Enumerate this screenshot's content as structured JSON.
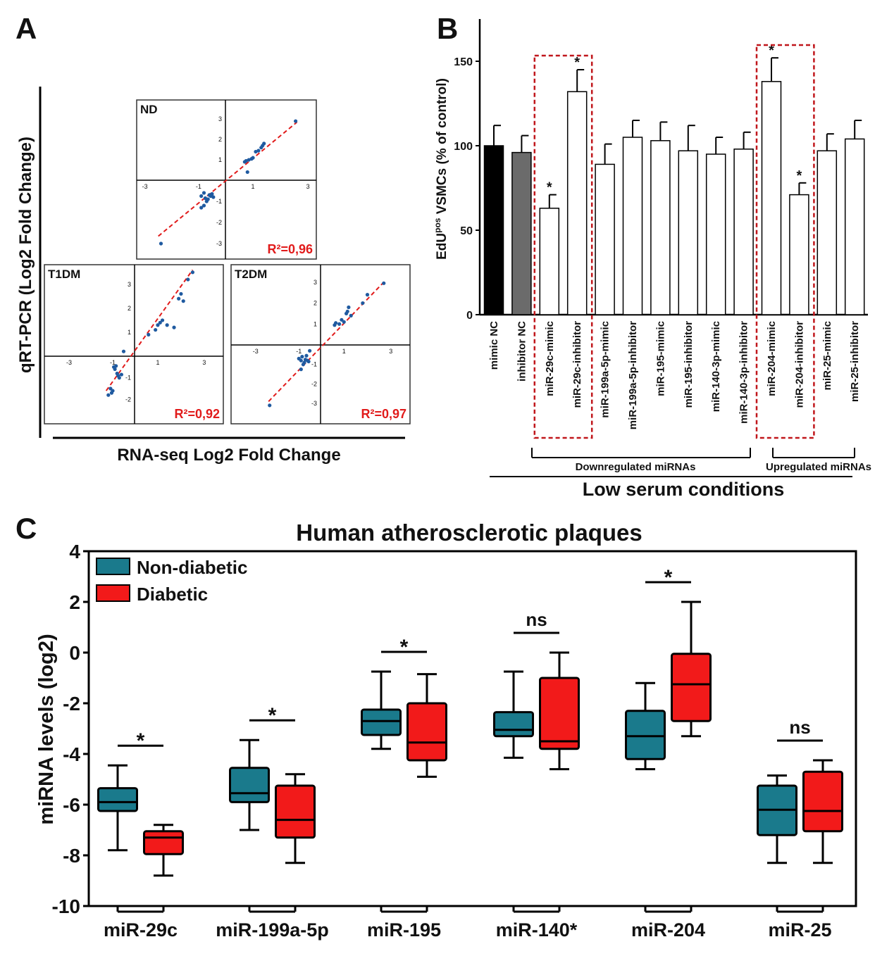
{
  "panel_labels": {
    "a": "A",
    "b": "B",
    "c": "C"
  },
  "colors": {
    "fit_line": "#e11b1b",
    "r2_text": "#e11b1b",
    "point": "#1f5aa0",
    "mimic_nc": "#000000",
    "inhibitor_nc": "#6b6b6b",
    "bar_default": "#ffffff",
    "highlight_box": "#c0161b",
    "non_diabetic": "#1a7a8c",
    "diabetic": "#f21a1a"
  },
  "panelA": {
    "ylabel": "qRT-PCR (Log2 Fold Change)",
    "xlabel": "RNA-seq Log2 Fold Change"
  },
  "panelB": {
    "ylabel_prefix": "EdU",
    "ylabel_sup": "pos",
    "ylabel_suffix": " VSMCs (% of control)",
    "group_labels": {
      "down": "Downregulated miRNAs",
      "up": "Upregulated miRNAs"
    },
    "condition_label": "Low serum conditions"
  },
  "panelC": {
    "title": "Human atherosclerotic plaques",
    "ylabel": "miRNA levels (log2)"
  },
  "chart_data": [
    {
      "type": "scatter",
      "panel": "A",
      "title": "ND",
      "annotation": "R²=0,96",
      "xticks": [
        "-3",
        "-1",
        "1",
        "3"
      ],
      "yticks": [
        "3",
        "2",
        "1",
        "-1",
        "-2",
        "-3"
      ],
      "xlim": [
        -3.2,
        3.2
      ],
      "ylim": [
        -3.6,
        3.8
      ],
      "fit_line": [
        [
          -2.5,
          -2.65
        ],
        [
          2.6,
          2.85
        ]
      ],
      "x": [
        -2.4,
        -0.9,
        -0.8,
        -0.75,
        -0.7,
        -0.65,
        -0.6,
        -0.55,
        -0.5,
        -0.45,
        -0.8,
        -0.9,
        0.7,
        0.75,
        0.85,
        0.95,
        1.0,
        1.1,
        1.2,
        1.3,
        1.35,
        1.4,
        0.8,
        2.55
      ],
      "y": [
        -3.0,
        -0.75,
        -0.6,
        -0.85,
        -1.0,
        -0.9,
        -0.7,
        -0.75,
        -0.65,
        -0.8,
        -1.2,
        -1.3,
        0.9,
        0.95,
        1.0,
        1.05,
        1.1,
        1.4,
        1.45,
        1.6,
        1.7,
        1.8,
        0.4,
        2.9
      ]
    },
    {
      "type": "scatter",
      "panel": "A",
      "title": "T1DM",
      "annotation": "R²=0,92",
      "xticks": [
        "-3",
        "-1",
        "1",
        "3"
      ],
      "yticks": [
        "3",
        "2",
        "1",
        "-1",
        "-2"
      ],
      "xlim": [
        -4.0,
        3.7
      ],
      "ylim": [
        -3.0,
        3.7
      ],
      "fit_line": [
        [
          -1.3,
          -1.6
        ],
        [
          2.5,
          3.6
        ]
      ],
      "x": [
        -1.2,
        -1.1,
        -1.0,
        -1.05,
        -0.95,
        -0.9,
        -0.85,
        -0.8,
        -0.75,
        -0.7,
        -0.6,
        -0.5,
        0.6,
        0.9,
        1.0,
        1.1,
        1.2,
        1.4,
        1.7,
        1.9,
        2.0,
        2.1,
        2.3,
        2.5
      ],
      "y": [
        -1.8,
        -1.5,
        -1.6,
        -1.7,
        -0.5,
        -0.6,
        -0.45,
        -0.8,
        -0.9,
        -1.0,
        -0.85,
        0.2,
        0.9,
        1.1,
        1.3,
        1.4,
        1.5,
        1.3,
        1.2,
        2.4,
        2.6,
        2.3,
        3.2,
        3.5
      ]
    },
    {
      "type": "scatter",
      "panel": "A",
      "title": "T2DM",
      "annotation": "R²=0,97",
      "xticks": [
        "-3",
        "-1",
        "1",
        "3"
      ],
      "yticks": [
        "3",
        "2",
        "1",
        "-1",
        "-2",
        "-3"
      ],
      "xlim": [
        -4.0,
        3.7
      ],
      "ylim": [
        -3.9,
        3.7
      ],
      "fit_line": [
        [
          -2.4,
          -2.9
        ],
        [
          2.7,
          3.0
        ]
      ],
      "x": [
        -2.35,
        -1.0,
        -0.9,
        -0.85,
        -0.8,
        -0.75,
        -0.7,
        -0.65,
        -0.6,
        -0.55,
        -0.5,
        -0.9,
        0.6,
        0.65,
        0.8,
        0.9,
        1.0,
        1.1,
        1.15,
        1.2,
        1.3,
        1.8,
        2.0,
        2.7
      ],
      "y": [
        -3.1,
        -0.7,
        -0.8,
        -0.6,
        -1.0,
        -0.9,
        -0.75,
        -0.55,
        -0.8,
        -0.85,
        -0.3,
        -1.25,
        0.95,
        1.05,
        1.0,
        1.2,
        1.1,
        1.5,
        1.6,
        1.8,
        1.4,
        2.0,
        2.4,
        2.95
      ]
    },
    {
      "type": "bar",
      "panel": "B",
      "categories": [
        "mimic NC",
        "inhibitor NC",
        "miR-29c-mimic",
        "miR-29c-inhibitor",
        "miR-199a-5p-mimic",
        "miR-199a-5p-inhibitor",
        "miR-195-mimic",
        "miR-195-inhibitor",
        "miR-140-3p-mimic",
        "miR-140-3p-inhibitor",
        "miR-204-mimic",
        "miR-204-inhibitor",
        "miR-25-mimic",
        "miR-25-inhibitor"
      ],
      "values": [
        100,
        96,
        63,
        132,
        89,
        105,
        103,
        97,
        95,
        98,
        138,
        71,
        97,
        104
      ],
      "error": [
        12,
        10,
        8,
        13,
        12,
        10,
        11,
        15,
        10,
        10,
        14,
        7,
        10,
        11
      ],
      "significance": [
        "",
        "",
        "*",
        "*",
        "",
        "",
        "",
        "",
        "",
        "",
        "*",
        "*",
        "",
        ""
      ],
      "yticks": [
        "0",
        "50",
        "100",
        "150"
      ],
      "ylim": [
        0,
        175
      ],
      "highlight_groups": [
        [
          2,
          3
        ],
        [
          10,
          11
        ]
      ]
    },
    {
      "type": "box",
      "panel": "C",
      "categories": [
        "miR-29c",
        "miR-199a-5p",
        "miR-195",
        "miR-140*",
        "miR-204",
        "miR-25"
      ],
      "significance": [
        "*",
        "*",
        "*",
        "ns",
        "*",
        "ns"
      ],
      "yticks": [
        "4",
        "2",
        "0",
        "-2",
        "-4",
        "-6",
        "-8",
        "-10"
      ],
      "ylim": [
        -10,
        4
      ],
      "series": [
        {
          "name": "Non-diabetic",
          "boxes": [
            {
              "min": -7.8,
              "q1": -6.25,
              "median": -5.9,
              "q3": -5.35,
              "max": -4.45
            },
            {
              "min": -7.0,
              "q1": -5.9,
              "median": -5.55,
              "q3": -4.55,
              "max": -3.45
            },
            {
              "min": -3.8,
              "q1": -3.25,
              "median": -2.7,
              "q3": -2.25,
              "max": -0.75
            },
            {
              "min": -4.15,
              "q1": -3.3,
              "median": -3.05,
              "q3": -2.35,
              "max": -0.75
            },
            {
              "min": -4.6,
              "q1": -4.2,
              "median": -3.3,
              "q3": -2.3,
              "max": -1.2
            },
            {
              "min": -8.3,
              "q1": -7.2,
              "median": -6.2,
              "q3": -5.25,
              "max": -4.85
            }
          ]
        },
        {
          "name": "Diabetic",
          "boxes": [
            {
              "min": -8.8,
              "q1": -7.95,
              "median": -7.3,
              "q3": -7.05,
              "max": -6.8
            },
            {
              "min": -8.3,
              "q1": -7.3,
              "median": -6.6,
              "q3": -5.25,
              "max": -4.8
            },
            {
              "min": -4.9,
              "q1": -4.25,
              "median": -3.55,
              "q3": -2.0,
              "max": -0.85
            },
            {
              "min": -4.6,
              "q1": -3.8,
              "median": -3.5,
              "q3": -1.0,
              "max": 0.0
            },
            {
              "min": -3.3,
              "q1": -2.7,
              "median": -1.25,
              "q3": -0.05,
              "max": 2.0
            },
            {
              "min": -8.3,
              "q1": -7.05,
              "median": -6.25,
              "q3": -4.7,
              "max": -4.25
            }
          ]
        }
      ]
    }
  ]
}
